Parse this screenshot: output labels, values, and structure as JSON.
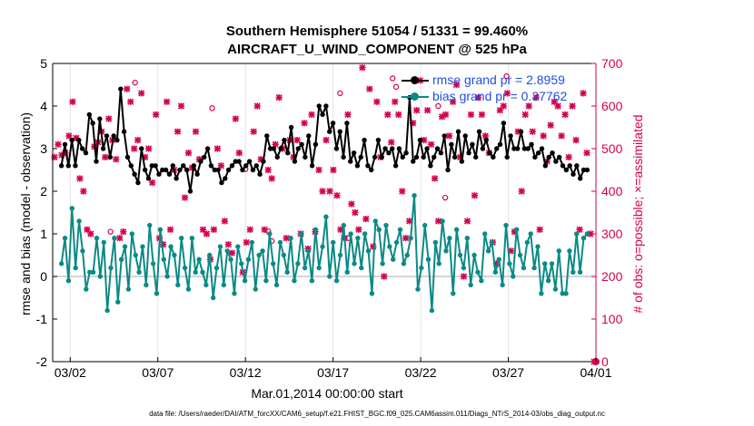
{
  "title_line1": "Southern Hemisphere 51054 / 51331 = 99.460%",
  "title_line2": "AIRCRAFT_U_WIND_COMPONENT @ 525 hPa",
  "footer": "data file: /Users/raeder/DAI/ATM_forcXX/CAM6_setup/f.e21.FHIST_BGC.f09_025.CAM6assim.011/Diags_NTrS_2014-03/obs_diag_output.nc",
  "colors": {
    "rmse": "#000000",
    "bias": "#0b8a86",
    "obs": "#d6004f",
    "legend_text": "#1f4fe0",
    "zero_line": "#bbbbbb",
    "grid": "#e3e3e3"
  },
  "chart_data": {
    "type": "line",
    "title": "Southern Hemisphere 51054 / 51331 = 99.460%",
    "subtitle": "AIRCRAFT_U_WIND_COMPONENT @ 525 hPa",
    "xlabel": "Mar.01,2014 00:00:00 start",
    "ylabel_left": "rmse and bias (model - observation)",
    "ylabel_right": "# of obs: o=possible; ×=assimilated",
    "xlim": [
      0,
      31
    ],
    "ylim_left": [
      -2,
      5
    ],
    "ylim_right": [
      0,
      700
    ],
    "x_tick_positions": [
      1,
      6,
      11,
      16,
      21,
      26,
      31
    ],
    "x_tick_labels": [
      "03/02",
      "03/07",
      "03/12",
      "03/17",
      "03/22",
      "03/27",
      "04/01"
    ],
    "y_ticks_left": [
      "-2",
      "-1",
      "0",
      "1",
      "2",
      "3",
      "4",
      "5"
    ],
    "y_ticks_right": [
      "0",
      "100",
      "200",
      "300",
      "400",
      "500",
      "600",
      "700"
    ],
    "legend_location": "top-right",
    "series": [
      {
        "name": "rmse grand pr = 2.8959",
        "axis": "left",
        "values": [
          2.6,
          3.1,
          2.6,
          3.2,
          2.6,
          3.2,
          3.0,
          2.9,
          3.8,
          3.6,
          2.7,
          3.7,
          3.0,
          3.3,
          2.8,
          3.3,
          3.2,
          4.4,
          3.4,
          2.8,
          2.6,
          2.4,
          2.2,
          3.0,
          2.5,
          2.3,
          2.6,
          2.6,
          2.4,
          2.5,
          2.5,
          2.4,
          2.6,
          2.3,
          2.5,
          2.6,
          2.5,
          2.0,
          2.6,
          2.4,
          2.7,
          2.8,
          3.0,
          2.6,
          2.5,
          2.5,
          2.2,
          2.3,
          2.5,
          2.6,
          2.7,
          2.7,
          2.5,
          2.6,
          2.7,
          2.5,
          2.6,
          2.4,
          2.7,
          3.3,
          3.0,
          3.0,
          2.8,
          3.0,
          3.2,
          2.9,
          3.5,
          2.7,
          3.0,
          3.1,
          2.8,
          3.3,
          2.6,
          3.1,
          4.0,
          3.8,
          4.0,
          3.4,
          3.6,
          3.0,
          3.4,
          2.8,
          3.6,
          2.7,
          2.9,
          2.6,
          2.8,
          3.2,
          2.6,
          2.5,
          2.8,
          3.2,
          2.8,
          3.0,
          2.9,
          3.0,
          2.6,
          3.0,
          2.8,
          2.9,
          4.2,
          2.7,
          2.8,
          3.2,
          2.8,
          3.0,
          2.6,
          2.8,
          3.0,
          2.9,
          3.3,
          2.5,
          3.1,
          2.8,
          3.4,
          2.7,
          3.3,
          2.9,
          3.1,
          2.8,
          3.4,
          3.0,
          3.2,
          2.9,
          2.8,
          3.0,
          3.1,
          3.6,
          2.8,
          3.3,
          3.0,
          3.0,
          3.4,
          3.0,
          3.0,
          3.1,
          2.8,
          2.9,
          3.0,
          2.6,
          2.8,
          2.9,
          2.7,
          2.8,
          2.6,
          2.5,
          2.6,
          2.4,
          2.6,
          2.3,
          2.5,
          2.5
        ]
      },
      {
        "name": "bias grand pr = 0.37762",
        "axis": "left",
        "values": [
          0.3,
          0.9,
          -0.1,
          1.6,
          0.2,
          1.3,
          0.6,
          -0.3,
          0.1,
          0.1,
          0.9,
          0.0,
          0.8,
          -0.8,
          0.2,
          0.9,
          -0.6,
          0.4,
          0.7,
          -0.3,
          1.0,
          0.5,
          0.1,
          0.7,
          -0.2,
          1.2,
          0.3,
          -0.4,
          1.1,
          0.4,
          0.0,
          0.7,
          0.5,
          -0.2,
          0.9,
          0.2,
          -0.3,
          0.9,
          0.1,
          0.4,
          0.1,
          -0.2,
          0.5,
          -0.5,
          0.2,
          0.7,
          -0.2,
          0.6,
          0.4,
          -0.4,
          0.7,
          0.3,
          -0.1,
          0.4,
          0.8,
          -0.3,
          0.5,
          0.6,
          -0.1,
          1.0,
          0.3,
          -0.2,
          0.8,
          0.5,
          0.1,
          0.9,
          -0.1,
          0.3,
          1.0,
          0.2,
          0.6,
          -0.1,
          1.1,
          0.2,
          0.7,
          1.4,
          0.0,
          0.8,
          -0.1,
          0.5,
          1.2,
          0.1,
          1.0,
          0.3,
          0.9,
          0.2,
          1.0,
          0.6,
          -0.4,
          1.3,
          1.1,
          0.3,
          1.2,
          0.7,
          0.4,
          0.8,
          1.1,
          0.3,
          0.5,
          0.9,
          1.9,
          -0.3,
          0.2,
          1.2,
          0.4,
          -0.8,
          0.8,
          0.3,
          1.3,
          0.6,
          0.9,
          -0.4,
          1.1,
          0.5,
          0.2,
          0.9,
          -0.2,
          0.5,
          0.1,
          -0.1,
          1.0,
          0.6,
          0.8,
          0.1,
          0.4,
          -0.2,
          1.2,
          0.3,
          0.0,
          1.1,
          0.5,
          0.2,
          0.8,
          1.0,
          0.2,
          0.7,
          -0.4,
          0.3,
          -0.1,
          0.3,
          -0.3,
          0.6,
          -0.4,
          -0.4,
          0.6,
          0.1,
          1.0,
          0.1,
          0.9,
          1.0
        ]
      },
      {
        "name": "obs possible",
        "axis": "right",
        "marker": "o",
        "x": [
          3.3,
          4.7,
          9.1,
          11.0,
          12.3,
          12.5,
          16.4,
          16.9,
          19.4,
          19.6,
          22.0,
          22.4,
          25.9
        ],
        "values": [
          305,
          655,
          595,
          452,
          306,
          283,
          630,
          290,
          665,
          645,
          600,
          385,
          670
        ]
      },
      {
        "name": "obs assimilated",
        "axis": "right",
        "marker": "x",
        "values": [
          480,
          510,
          485,
          490,
          530,
          610,
          525,
          430,
          400,
          310,
          300,
          505,
          515,
          540,
          480,
          570,
          520,
          475,
          290,
          305,
          640,
          610,
          500,
          520,
          630,
          480,
          500,
          420,
          580,
          290,
          275,
          610,
          310,
          450,
          540,
          600,
          385,
          490,
          455,
          540,
          475,
          310,
          300,
          240,
          310,
          500,
          460,
          330,
          275,
          255,
          570,
          490,
          210,
          280,
          310,
          540,
          600,
          475,
          310,
          450,
          430,
          510,
          620,
          500,
          290,
          520,
          480,
          520,
          300,
          560,
          265,
          580,
          305,
          450,
          400,
          520,
          400,
          450,
          390,
          310,
          290,
          580,
          370,
          350,
          310,
          690,
          335,
          640,
          270,
          610,
          480,
          200,
          580,
          515,
          610,
          580,
          400,
          290,
          330,
          560,
          590,
          660,
          520,
          590,
          510,
          430,
          330,
          575,
          580,
          530,
          610,
          650,
          480,
          200,
          330,
          580,
          390,
          620,
          580,
          530,
          490,
          280,
          230,
          590,
          600,
          630,
          260,
          305,
          540,
          400,
          580,
          600,
          540,
          620,
          310,
          530,
          470,
          555,
          610,
          600,
          530,
          580,
          480,
          600,
          520,
          310,
          630,
          490,
          300,
          0
        ]
      }
    ]
  }
}
